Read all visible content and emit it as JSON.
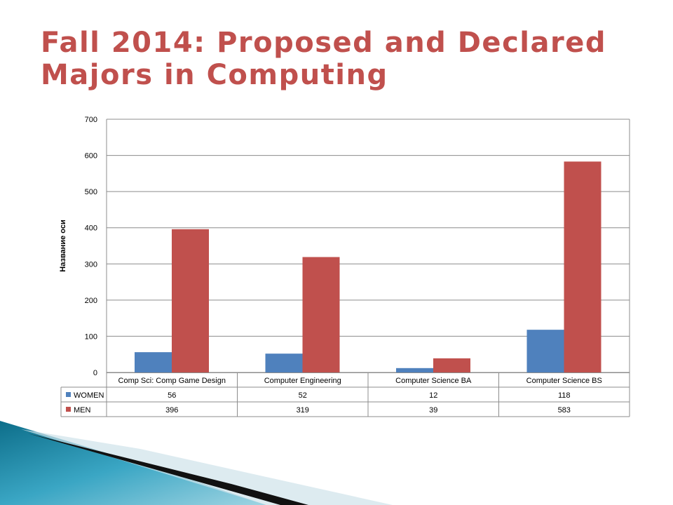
{
  "slide": {
    "title": "Fall 2014: Proposed and Declared Majors in Computing"
  },
  "colors": {
    "title": "#c0504d",
    "women": "#4f81bd",
    "men": "#c0504d",
    "grid": "#8c8c8c"
  },
  "chart_data": {
    "type": "bar",
    "categories": [
      "Comp Sci: Comp Game Design",
      "Computer Engineering",
      "Computer Science BA",
      "Computer Science BS"
    ],
    "series": [
      {
        "name": "WOMEN",
        "values": [
          56,
          52,
          12,
          118
        ]
      },
      {
        "name": "MEN",
        "values": [
          396,
          319,
          39,
          583
        ]
      }
    ],
    "ylabel": "Название оси",
    "ylim": [
      0,
      700
    ],
    "yticks": [
      0,
      100,
      200,
      300,
      400,
      500,
      600,
      700
    ],
    "grid": true,
    "legend": "data-table"
  }
}
